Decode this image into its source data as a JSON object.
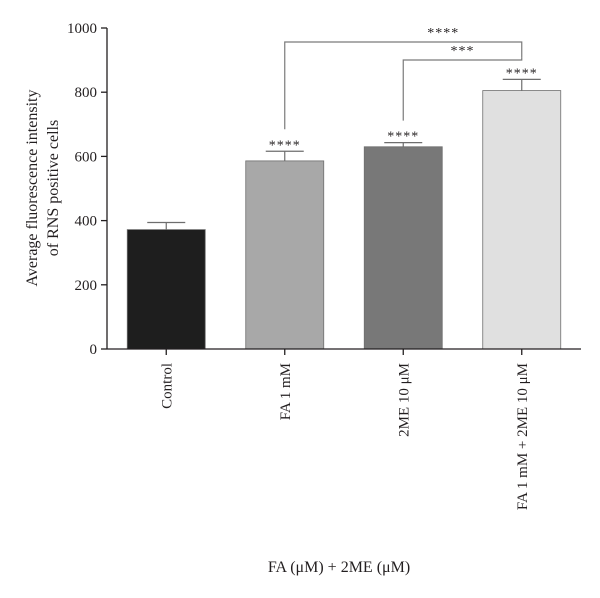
{
  "chart_data": {
    "type": "bar",
    "categories": [
      "Control",
      "FA 1 mM",
      "2ME 10 μM",
      "FA 1 mM + 2ME 10 μM"
    ],
    "values": [
      372,
      586,
      630,
      805
    ],
    "errors": [
      22,
      30,
      13,
      35
    ],
    "bar_colors": [
      "#1e1e1e",
      "#a8a8a8",
      "#787878",
      "#e0e0e0"
    ],
    "bar_significance": [
      "",
      "****",
      "****",
      "****"
    ],
    "comparisons": [
      {
        "from": 1,
        "to": 3,
        "label": "****"
      },
      {
        "from": 2,
        "to": 3,
        "label": "***"
      }
    ],
    "ylabel_line1": "Average fluorescence intensity",
    "ylabel_line2": "of RNS positive cells",
    "xlabel": "FA (μM) + 2ME (μM)",
    "ylim": [
      0,
      1000
    ],
    "yticks": [
      0,
      200,
      400,
      600,
      800,
      1000
    ],
    "grid": false
  }
}
